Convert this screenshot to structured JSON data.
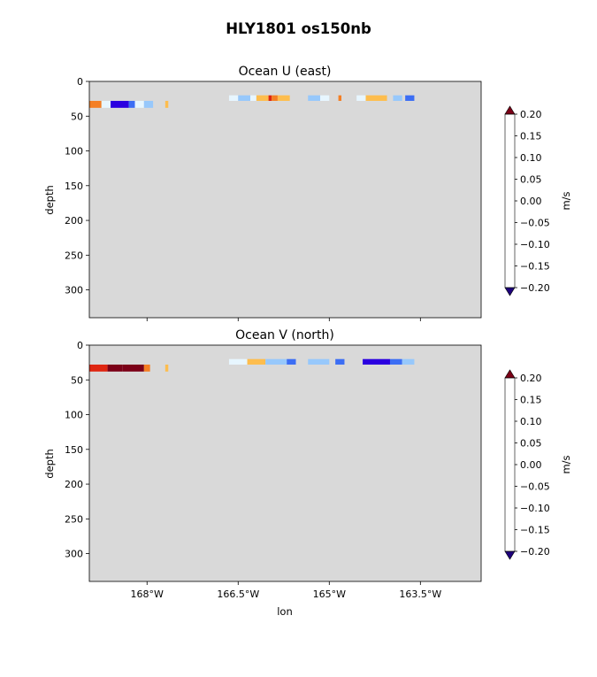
{
  "figure": {
    "suptitle": "HLY1801 os150nb",
    "bg_color": "#ffffff",
    "masked_color": "#d9d9d9"
  },
  "chart_data": [
    {
      "type": "heatmap",
      "title": "Ocean U (east)",
      "xlabel": "",
      "ylabel": "depth",
      "x_ticks": [
        -168,
        -166.5,
        -165,
        -163.5
      ],
      "x_tick_labels": [],
      "xlim": [
        -168.95,
        -162.5
      ],
      "y_ticks": [
        0,
        50,
        100,
        150,
        200,
        250,
        300
      ],
      "y_tick_labels": [
        "0",
        "50",
        "100",
        "150",
        "200",
        "250",
        "300"
      ],
      "ylim": [
        340,
        0
      ],
      "background": "#d9d9d9",
      "segments": [
        {
          "x": -168.95,
          "x2": -168.75,
          "y": 28,
          "y2": 38,
          "value": 0.1
        },
        {
          "x": -168.75,
          "x2": -168.6,
          "y": 28,
          "y2": 38,
          "value": -0.05
        },
        {
          "x": -168.6,
          "x2": -168.3,
          "y": 28,
          "y2": 38,
          "value": -0.2
        },
        {
          "x": -168.3,
          "x2": -168.2,
          "y": 28,
          "y2": 38,
          "value": -0.15
        },
        {
          "x": -168.2,
          "x2": -168.05,
          "y": 28,
          "y2": 38,
          "value": -0.05
        },
        {
          "x": -168.05,
          "x2": -167.9,
          "y": 28,
          "y2": 38,
          "value": -0.1
        },
        {
          "x": -167.7,
          "x2": -167.65,
          "y": 28,
          "y2": 38,
          "value": 0.05
        },
        {
          "x": -166.65,
          "x2": -166.5,
          "y": 20,
          "y2": 28,
          "value": -0.05
        },
        {
          "x": -166.5,
          "x2": -166.3,
          "y": 20,
          "y2": 28,
          "value": -0.1
        },
        {
          "x": -166.3,
          "x2": -166.2,
          "y": 20,
          "y2": 28,
          "value": -0.05
        },
        {
          "x": -166.2,
          "x2": -166.0,
          "y": 20,
          "y2": 28,
          "value": 0.05
        },
        {
          "x": -166.0,
          "x2": -165.95,
          "y": 20,
          "y2": 28,
          "value": 0.15
        },
        {
          "x": -165.95,
          "x2": -165.85,
          "y": 20,
          "y2": 28,
          "value": 0.1
        },
        {
          "x": -165.85,
          "x2": -165.65,
          "y": 20,
          "y2": 28,
          "value": 0.05
        },
        {
          "x": -165.35,
          "x2": -165.15,
          "y": 20,
          "y2": 28,
          "value": -0.1
        },
        {
          "x": -165.15,
          "x2": -165.0,
          "y": 20,
          "y2": 28,
          "value": -0.05
        },
        {
          "x": -164.85,
          "x2": -164.8,
          "y": 20,
          "y2": 28,
          "value": 0.1
        },
        {
          "x": -164.55,
          "x2": -164.4,
          "y": 20,
          "y2": 28,
          "value": -0.05
        },
        {
          "x": -164.4,
          "x2": -164.05,
          "y": 20,
          "y2": 28,
          "value": 0.05
        },
        {
          "x": -163.95,
          "x2": -163.8,
          "y": 20,
          "y2": 28,
          "value": -0.1
        },
        {
          "x": -163.75,
          "x2": -163.6,
          "y": 20,
          "y2": 28,
          "value": -0.15
        }
      ]
    },
    {
      "type": "heatmap",
      "title": "Ocean V (north)",
      "xlabel": "lon",
      "ylabel": "depth",
      "x_ticks": [
        -168,
        -166.5,
        -165,
        -163.5
      ],
      "x_tick_labels": [
        "168°W",
        "166.5°W",
        "165°W",
        "163.5°W"
      ],
      "xlim": [
        -168.95,
        -162.5
      ],
      "y_ticks": [
        0,
        50,
        100,
        150,
        200,
        250,
        300
      ],
      "y_tick_labels": [
        "0",
        "50",
        "100",
        "150",
        "200",
        "250",
        "300"
      ],
      "ylim": [
        340,
        0
      ],
      "background": "#d9d9d9",
      "segments": [
        {
          "x": -168.95,
          "x2": -168.65,
          "y": 28,
          "y2": 38,
          "value": 0.15
        },
        {
          "x": -168.65,
          "x2": -168.4,
          "y": 28,
          "y2": 38,
          "value": 0.2
        },
        {
          "x": -168.4,
          "x2": -168.05,
          "y": 28,
          "y2": 38,
          "value": 0.25
        },
        {
          "x": -168.05,
          "x2": -167.95,
          "y": 28,
          "y2": 38,
          "value": 0.1
        },
        {
          "x": -167.7,
          "x2": -167.65,
          "y": 28,
          "y2": 38,
          "value": 0.05
        },
        {
          "x": -166.65,
          "x2": -166.35,
          "y": 20,
          "y2": 28,
          "value": -0.05
        },
        {
          "x": -166.35,
          "x2": -166.05,
          "y": 20,
          "y2": 28,
          "value": 0.05
        },
        {
          "x": -166.05,
          "x2": -165.7,
          "y": 20,
          "y2": 28,
          "value": -0.1
        },
        {
          "x": -165.7,
          "x2": -165.55,
          "y": 20,
          "y2": 28,
          "value": -0.15
        },
        {
          "x": -165.35,
          "x2": -165.0,
          "y": 20,
          "y2": 28,
          "value": -0.1
        },
        {
          "x": -164.9,
          "x2": -164.75,
          "y": 20,
          "y2": 28,
          "value": -0.15
        },
        {
          "x": -164.45,
          "x2": -164.0,
          "y": 20,
          "y2": 28,
          "value": -0.2
        },
        {
          "x": -164.0,
          "x2": -163.8,
          "y": 20,
          "y2": 28,
          "value": -0.15
        },
        {
          "x": -163.8,
          "x2": -163.6,
          "y": 20,
          "y2": 28,
          "value": -0.1
        }
      ]
    }
  ],
  "colorbar": {
    "label": "m/s",
    "levels": [
      -0.2,
      -0.15,
      -0.1,
      -0.05,
      0.0,
      0.05,
      0.1,
      0.15,
      0.2
    ],
    "tick_labels": [
      "−0.20",
      "−0.15",
      "−0.10",
      "−0.05",
      "0.00",
      "0.05",
      "0.10",
      "0.15",
      "0.20"
    ],
    "colors": [
      "#2b00e0",
      "#3c6ef4",
      "#97c8fb",
      "#e7f6ff",
      "#fff6c5",
      "#fdbd4e",
      "#f47f24",
      "#df2611"
    ],
    "under_color": "#1e007c",
    "over_color": "#7b0017"
  }
}
